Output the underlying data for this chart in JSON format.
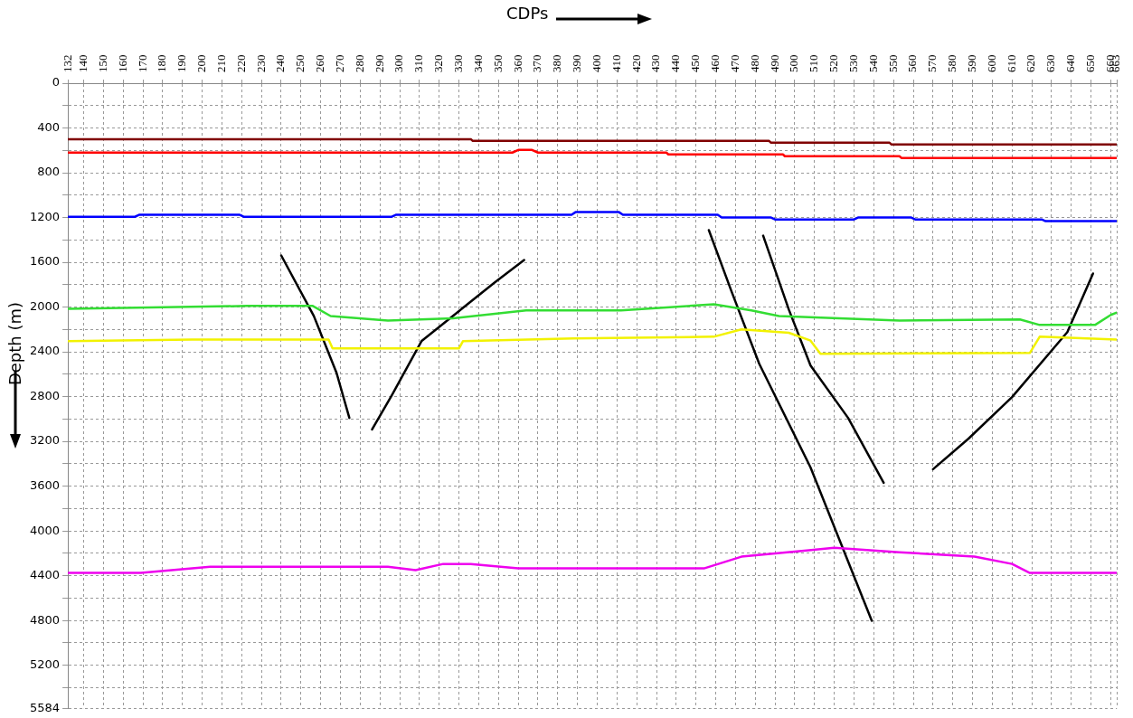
{
  "chart_data": {
    "type": "line",
    "xlabel": "CDPs",
    "ylabel": "Depth (m)",
    "xlim": [
      132,
      663
    ],
    "ylim": [
      5584,
      0
    ],
    "xticks": [
      132,
      140,
      150,
      160,
      170,
      180,
      190,
      200,
      210,
      220,
      230,
      240,
      250,
      260,
      270,
      280,
      290,
      300,
      310,
      320,
      330,
      340,
      350,
      360,
      370,
      380,
      390,
      400,
      410,
      420,
      430,
      440,
      450,
      460,
      470,
      480,
      490,
      500,
      510,
      520,
      530,
      540,
      550,
      560,
      570,
      580,
      590,
      600,
      610,
      620,
      630,
      640,
      650,
      660,
      663
    ],
    "yticks": [
      0,
      {
        "value": 200,
        "label": null
      },
      400,
      {
        "value": 600,
        "label": null
      },
      800,
      {
        "value": 1000,
        "label": null
      },
      1200,
      {
        "value": 1400,
        "label": null
      },
      1600,
      {
        "value": 1800,
        "label": null
      },
      2000,
      {
        "value": 2200,
        "label": null
      },
      2400,
      {
        "value": 2600,
        "label": null
      },
      2800,
      {
        "value": 3000,
        "label": null
      },
      3200,
      {
        "value": 3400,
        "label": null
      },
      3600,
      {
        "value": 3800,
        "label": null
      },
      4000,
      {
        "value": 4200,
        "label": null
      },
      4400,
      {
        "value": 4600,
        "label": null
      },
      4800,
      {
        "value": 5000,
        "label": null
      },
      5200,
      {
        "value": 5400,
        "label": null
      },
      5584
    ],
    "grid": true,
    "marker": "none",
    "line_style": "solid",
    "series": [
      {
        "color": "#800000",
        "x": [
          132,
          336,
          337,
          487,
          488,
          548,
          549,
          663
        ],
        "values": [
          500,
          500,
          516,
          516,
          532,
          532,
          548,
          548
        ]
      },
      {
        "color": "#ff0000",
        "x": [
          132,
          357,
          360,
          367,
          370,
          435,
          436,
          494,
          495,
          553,
          554,
          663
        ],
        "values": [
          620,
          620,
          596,
          596,
          620,
          620,
          636,
          636,
          652,
          652,
          668,
          668
        ]
      },
      {
        "color": "#0000ff",
        "x": [
          132,
          166,
          168,
          219,
          221,
          296,
          298,
          387,
          389,
          411,
          413,
          461,
          463,
          488,
          490,
          530,
          532,
          559,
          561,
          625,
          627,
          663
        ],
        "values": [
          1193,
          1193,
          1176,
          1176,
          1193,
          1193,
          1176,
          1176,
          1152,
          1152,
          1176,
          1176,
          1200,
          1200,
          1217,
          1217,
          1200,
          1200,
          1217,
          1217,
          1233,
          1233
        ]
      },
      {
        "color": "#33dd33",
        "x": [
          132,
          223,
          256,
          265,
          294,
          327,
          364,
          412,
          459,
          478,
          492,
          553,
          614,
          624,
          652,
          660,
          663
        ],
        "values": [
          2015,
          1990,
          1990,
          2080,
          2120,
          2100,
          2030,
          2030,
          1975,
          2030,
          2080,
          2120,
          2110,
          2160,
          2160,
          2070,
          2050
        ]
      },
      {
        "color": "#f2f200",
        "x": [
          132,
          195,
          264,
          266,
          330,
          332,
          388,
          459,
          473,
          497,
          508,
          513,
          619,
          624,
          663
        ],
        "values": [
          2305,
          2290,
          2290,
          2370,
          2370,
          2305,
          2280,
          2265,
          2200,
          2230,
          2300,
          2417,
          2410,
          2265,
          2290
        ]
      },
      {
        "color": "#ee00ee",
        "x": [
          132,
          169,
          204,
          294,
          308,
          322,
          336,
          360,
          454,
          473,
          506,
          520,
          553,
          591,
          610,
          619,
          663
        ],
        "values": [
          4375,
          4375,
          4320,
          4320,
          4350,
          4295,
          4295,
          4335,
          4335,
          4230,
          4175,
          4150,
          4190,
          4230,
          4295,
          4375,
          4375
        ]
      },
      {
        "color": "#000000",
        "x": [
          240,
          256.5,
          268,
          274.5
        ],
        "values": [
          1539,
          2079,
          2587,
          2990
        ]
      },
      {
        "color": "#000000",
        "x": [
          286,
          296,
          311,
          348,
          363
        ],
        "values": [
          3094,
          2788,
          2305,
          1781,
          1579
        ]
      },
      {
        "color": "#000000",
        "x": [
          456.5,
          468,
          482,
          508,
          539
        ],
        "values": [
          1313,
          1861,
          2506,
          3433,
          4803
        ]
      },
      {
        "color": "#000000",
        "x": [
          484,
          497,
          508,
          527,
          545
        ],
        "values": [
          1362,
          2023,
          2522,
          2990,
          3570
        ]
      },
      {
        "color": "#000000",
        "x": [
          570,
          588,
          610,
          638,
          651
        ],
        "values": [
          3449,
          3175,
          2804,
          2224,
          1700
        ]
      }
    ]
  }
}
